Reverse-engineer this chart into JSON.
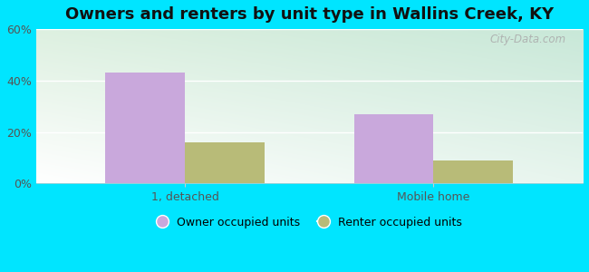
{
  "title": "Owners and renters by unit type in Wallins Creek, KY",
  "categories": [
    "1, detached",
    "Mobile home"
  ],
  "owner_values": [
    43,
    27
  ],
  "renter_values": [
    16,
    9
  ],
  "owner_color": "#c9a8dc",
  "renter_color": "#b8bb78",
  "ylim": [
    0,
    60
  ],
  "yticks": [
    0,
    20,
    40,
    60
  ],
  "ytick_labels": [
    "0%",
    "20%",
    "40%",
    "60%"
  ],
  "legend_owner": "Owner occupied units",
  "legend_renter": "Renter occupied units",
  "background_color": "#00e5ff",
  "bar_width": 0.32,
  "watermark": "City-Data.com",
  "title_fontsize": 13,
  "tick_fontsize": 9
}
